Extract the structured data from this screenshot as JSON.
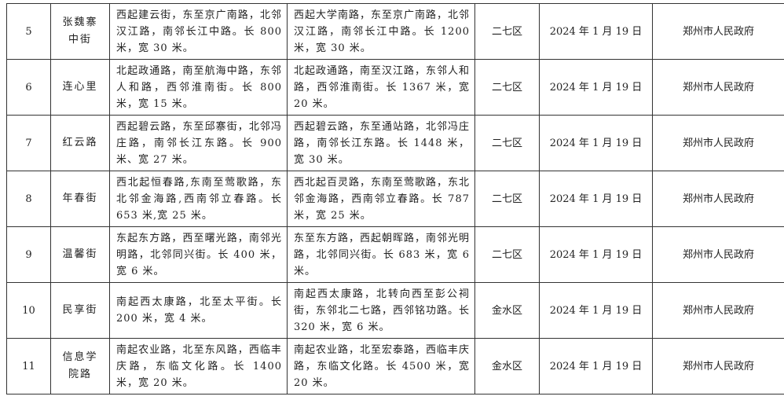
{
  "rows": [
    {
      "no": "5",
      "name": "张魏寨中街",
      "before": "西起建云街，东至京广南路，北邻汉江路，南邻长江中路。长 800 米，宽 30 米。",
      "after": "西起大学南路，东至京广南路，北邻汉江路，南邻长江中路。长 1200 米，宽 30 米。",
      "district": "二七区",
      "date": "2024 年 1 月 19 日",
      "approver": "郑州市人民政府"
    },
    {
      "no": "6",
      "name": "连心里",
      "before": "北起政通路，南至航海中路，东邻人和路，西邻淮南街。长 800 米，宽 15 米。",
      "after": "北起政通路，南至汉江路，东邻人和路，西邻淮南街。长 1367 米，宽 20 米。",
      "district": "二七区",
      "date": "2024 年 1 月 19 日",
      "approver": "郑州市人民政府"
    },
    {
      "no": "7",
      "name": "红云路",
      "before": "西起碧云路，东至邱寨街，北邻冯庄路，南邻长江东路。长 900 米、宽 27 米。",
      "after": "西起碧云路，东至通站路，北邻冯庄路，南邻长江东路。长 1448 米，宽 30 米。",
      "district": "二七区",
      "date": "2024 年 1 月 19 日",
      "approver": "郑州市人民政府"
    },
    {
      "no": "8",
      "name": "年春街",
      "before": "西北起恒春路,东南至莺歌路，东北邻金海路,西南邻立春路。长 653 米,宽 25 米。",
      "after": "西北起百灵路，东南至莺歌路，东北邻金海路，西南邻立春路。长 787 米，宽 25 米。",
      "district": "二七区",
      "date": "2024 年 1 月 19 日",
      "approver": "郑州市人民政府"
    },
    {
      "no": "9",
      "name": "温馨街",
      "before": "东起东方路，西至曙光路，南邻光明路，北邻同兴街。长 400 米，宽 6 米。",
      "after": "东至东方路，西起朝晖路，南邻光明路，北邻同兴街。长 683 米，宽 6 米。",
      "district": "二七区",
      "date": "2024 年 1 月 19 日",
      "approver": "郑州市人民政府"
    },
    {
      "no": "10",
      "name": "民享街",
      "before": "南起西太康路，北至太平街。长 200 米，宽 4 米。",
      "after": "南起西太康路，北转向西至彭公祠街，东邻北二七路，西邻铭功路。长 320 米，宽 6 米。",
      "district": "金水区",
      "date": "2024 年 1 月 19 日",
      "approver": "郑州市人民政府"
    },
    {
      "no": "11",
      "name": "信息学院路",
      "before": "南起农业路，北至东风路，西临丰庆路，东临文化路。长 1400 米，宽 20 米。",
      "after": "南起农业路，北至宏泰路，西临丰庆路，东临文化路。长 4500 米，宽 20 米。",
      "district": "金水区",
      "date": "2024 年 1 月 19 日",
      "approver": "郑州市人民政府"
    }
  ]
}
